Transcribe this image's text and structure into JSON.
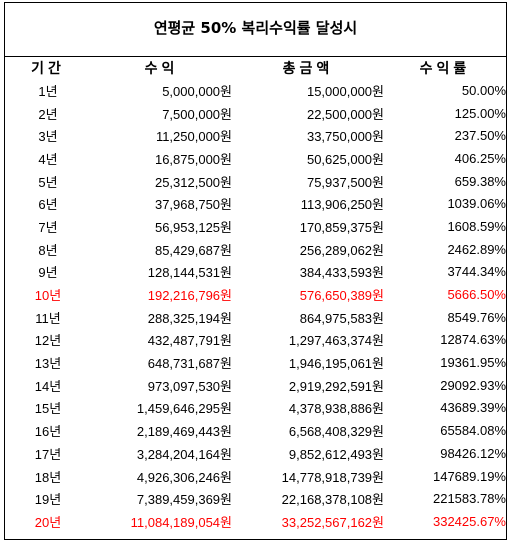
{
  "title": "연평균 50% 복리수익률 달성시",
  "columns": [
    "기간",
    "수익",
    "총금액",
    "수익률"
  ],
  "highlight_color": "#ff0000",
  "rows": [
    {
      "period": "1년",
      "profit": "5,000,000원",
      "total": "15,000,000원",
      "rate": "50.00%",
      "highlight": false
    },
    {
      "period": "2년",
      "profit": "7,500,000원",
      "total": "22,500,000원",
      "rate": "125.00%",
      "highlight": false
    },
    {
      "period": "3년",
      "profit": "11,250,000원",
      "total": "33,750,000원",
      "rate": "237.50%",
      "highlight": false
    },
    {
      "period": "4년",
      "profit": "16,875,000원",
      "total": "50,625,000원",
      "rate": "406.25%",
      "highlight": false
    },
    {
      "period": "5년",
      "profit": "25,312,500원",
      "total": "75,937,500원",
      "rate": "659.38%",
      "highlight": false
    },
    {
      "period": "6년",
      "profit": "37,968,750원",
      "total": "113,906,250원",
      "rate": "1039.06%",
      "highlight": false
    },
    {
      "period": "7년",
      "profit": "56,953,125원",
      "total": "170,859,375원",
      "rate": "1608.59%",
      "highlight": false
    },
    {
      "period": "8년",
      "profit": "85,429,687원",
      "total": "256,289,062원",
      "rate": "2462.89%",
      "highlight": false
    },
    {
      "period": "9년",
      "profit": "128,144,531원",
      "total": "384,433,593원",
      "rate": "3744.34%",
      "highlight": false
    },
    {
      "period": "10년",
      "profit": "192,216,796원",
      "total": "576,650,389원",
      "rate": "5666.50%",
      "highlight": true
    },
    {
      "period": "11년",
      "profit": "288,325,194원",
      "total": "864,975,583원",
      "rate": "8549.76%",
      "highlight": false
    },
    {
      "period": "12년",
      "profit": "432,487,791원",
      "total": "1,297,463,374원",
      "rate": "12874.63%",
      "highlight": false
    },
    {
      "period": "13년",
      "profit": "648,731,687원",
      "total": "1,946,195,061원",
      "rate": "19361.95%",
      "highlight": false
    },
    {
      "period": "14년",
      "profit": "973,097,530원",
      "total": "2,919,292,591원",
      "rate": "29092.93%",
      "highlight": false
    },
    {
      "period": "15년",
      "profit": "1,459,646,295원",
      "total": "4,378,938,886원",
      "rate": "43689.39%",
      "highlight": false
    },
    {
      "period": "16년",
      "profit": "2,189,469,443원",
      "total": "6,568,408,329원",
      "rate": "65584.08%",
      "highlight": false
    },
    {
      "period": "17년",
      "profit": "3,284,204,164원",
      "total": "9,852,612,493원",
      "rate": "98426.12%",
      "highlight": false
    },
    {
      "period": "18년",
      "profit": "4,926,306,246원",
      "total": "14,778,918,739원",
      "rate": "147689.19%",
      "highlight": false
    },
    {
      "period": "19년",
      "profit": "7,389,459,369원",
      "total": "22,168,378,108원",
      "rate": "221583.78%",
      "highlight": false
    },
    {
      "period": "20년",
      "profit": "11,084,189,054원",
      "total": "33,252,567,162원",
      "rate": "332425.67%",
      "highlight": true
    }
  ]
}
